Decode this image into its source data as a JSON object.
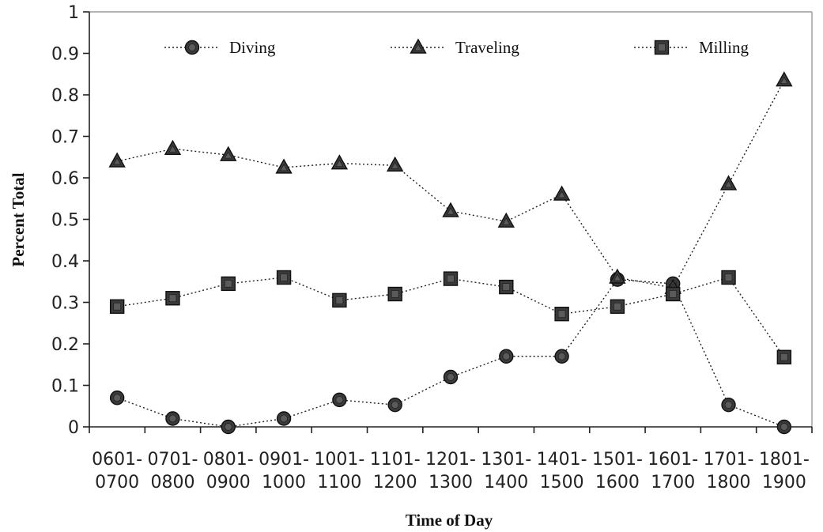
{
  "chart_data": {
    "type": "line",
    "xlabel": "Time of Day",
    "ylabel": "Percent Total",
    "ylim": [
      0,
      1
    ],
    "yticks": [
      "0",
      "0.1",
      "0.2",
      "0.3",
      "0.4",
      "0.5",
      "0.6",
      "0.7",
      "0.8",
      "0.9",
      "1"
    ],
    "categories": [
      [
        "0601-",
        "0700"
      ],
      [
        "0701-",
        "0800"
      ],
      [
        "0801-",
        "0900"
      ],
      [
        "0901-",
        "1000"
      ],
      [
        "1001-",
        "1100"
      ],
      [
        "1101-",
        "1200"
      ],
      [
        "1201-",
        "1300"
      ],
      [
        "1301-",
        "1400"
      ],
      [
        "1401-",
        "1500"
      ],
      [
        "1501-",
        "1600"
      ],
      [
        "1601-",
        "1700"
      ],
      [
        "1701-",
        "1800"
      ],
      [
        "1801-",
        "1900"
      ]
    ],
    "legend_position": "top",
    "grid": false,
    "series": [
      {
        "name": "Diving",
        "marker": "circle",
        "values": [
          0.07,
          0.02,
          0.0,
          0.02,
          0.065,
          0.053,
          0.12,
          0.17,
          0.17,
          0.355,
          0.345,
          0.053,
          0.0
        ]
      },
      {
        "name": "Traveling",
        "marker": "triangle",
        "values": [
          0.64,
          0.67,
          0.655,
          0.625,
          0.635,
          0.63,
          0.52,
          0.495,
          0.56,
          0.36,
          0.335,
          0.585,
          0.835
        ]
      },
      {
        "name": "Milling",
        "marker": "square",
        "values": [
          0.29,
          0.31,
          0.345,
          0.36,
          0.305,
          0.32,
          0.357,
          0.337,
          0.272,
          0.29,
          0.32,
          0.36,
          0.168
        ]
      }
    ]
  }
}
